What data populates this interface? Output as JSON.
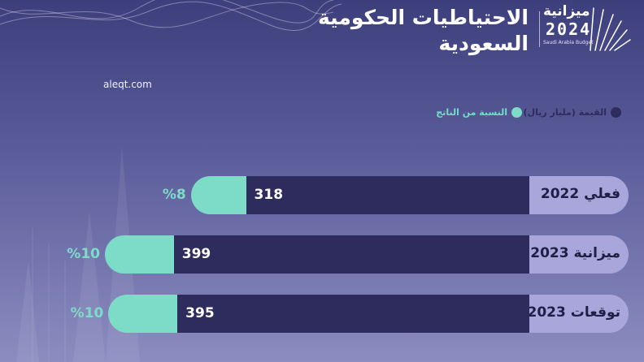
{
  "header": {
    "title_line1": "الاحتياطيات الحكومية",
    "title_line2": "السعودية"
  },
  "logo": {
    "word": "ميزانية",
    "year": "2024",
    "subtitle": "Saudi Arabia Budget"
  },
  "source": "aleqt.com",
  "legend": {
    "value_label": "القيمة (مليار ريال)",
    "ratio_label": "النسبة من الناتج"
  },
  "colors": {
    "value_bar": "#2d2c5c",
    "ratio_bar": "#7ddcc8",
    "label_box": "#a9a6dc"
  },
  "chart_data": {
    "type": "bar",
    "orientation": "horizontal",
    "categories": [
      "فعلي 2022",
      "ميزانية 2023",
      "توقعات 2023"
    ],
    "series": [
      {
        "name": "القيمة (مليار ريال)",
        "values": [
          318,
          399,
          395
        ],
        "labels": [
          "318",
          "399",
          "395"
        ]
      },
      {
        "name": "النسبة من الناتج",
        "values": [
          8,
          10,
          10
        ],
        "labels": [
          "%8",
          "%10",
          "%10"
        ]
      }
    ],
    "legend_position": "top-right"
  }
}
